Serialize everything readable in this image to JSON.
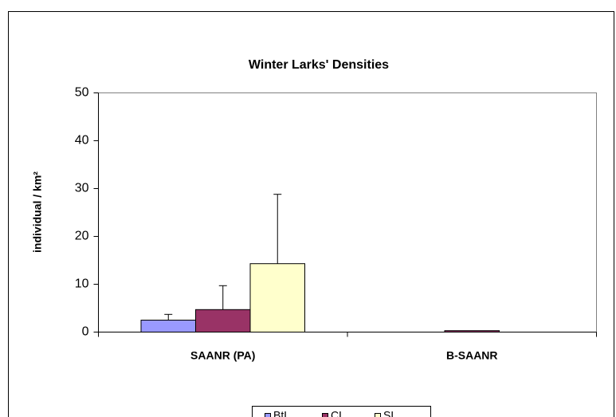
{
  "chart_data": {
    "type": "bar",
    "title": "Winter  Larks'  Densities",
    "ylabel": "individual / km²",
    "categories": [
      "SAANR (PA)",
      "B-SAANR"
    ],
    "series": [
      {
        "name": "BtL",
        "color": "#9999ff",
        "values": [
          2.5,
          0
        ],
        "errors": [
          1.2,
          0
        ]
      },
      {
        "name": "CL",
        "color": "#993366",
        "values": [
          4.7,
          0.3
        ],
        "errors": [
          5,
          0
        ]
      },
      {
        "name": "SL",
        "color": "#ffffcc",
        "values": [
          14.3,
          0
        ],
        "errors": [
          14.5,
          0
        ]
      }
    ],
    "ylim": [
      0,
      50
    ],
    "yticks": [
      0,
      10,
      20,
      30,
      40,
      50
    ],
    "grid": false,
    "legend": "bottom"
  }
}
